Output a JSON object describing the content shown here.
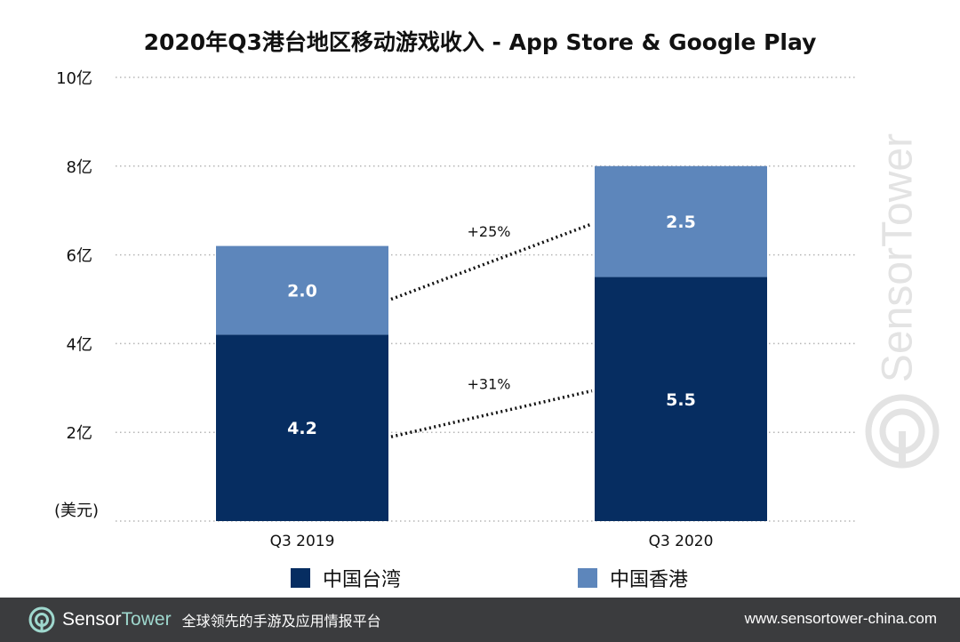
{
  "title": "2020年Q3港台地区移动游戏收入 - App Store & Google Play",
  "colors": {
    "taiwan": "#062d61",
    "hongkong": "#5d86bb",
    "footer_bg": "#3b3c3e",
    "brand_accent": "#9fd8ce"
  },
  "chart_data": {
    "type": "bar",
    "stacked": true,
    "categories": [
      "Q3  2019",
      "Q3 2020"
    ],
    "series": [
      {
        "name": "中国台湾",
        "values": [
          4.2,
          5.5
        ],
        "labels": [
          "4.2",
          "5.5"
        ],
        "color": "#062d61"
      },
      {
        "name": "中国香港",
        "values": [
          2.0,
          2.5
        ],
        "labels": [
          "2.0",
          "2.5"
        ],
        "color": "#5d86bb"
      }
    ],
    "ylim": [
      0,
      10
    ],
    "yticks": [
      {
        "value": 2,
        "label": "2亿"
      },
      {
        "value": 4,
        "label": "4亿"
      },
      {
        "value": 6,
        "label": "6亿"
      },
      {
        "value": 8,
        "label": "8亿"
      },
      {
        "value": 10,
        "label": "10亿"
      }
    ],
    "yunit": "(美元)",
    "grid": true,
    "legend_position": "bottom",
    "annotations": [
      {
        "series": 0,
        "label": "+31%"
      },
      {
        "series": 1,
        "label": "+25%"
      }
    ]
  },
  "watermark": {
    "text": "SensorTower",
    "icon": "sensortower-logo-icon"
  },
  "footer": {
    "brand_part1": "Sensor",
    "brand_part2": "Tower",
    "tagline": "全球领先的手游及应用情报平台",
    "url": "www.sensortower-china.com",
    "icon": "sensortower-logo-icon"
  }
}
